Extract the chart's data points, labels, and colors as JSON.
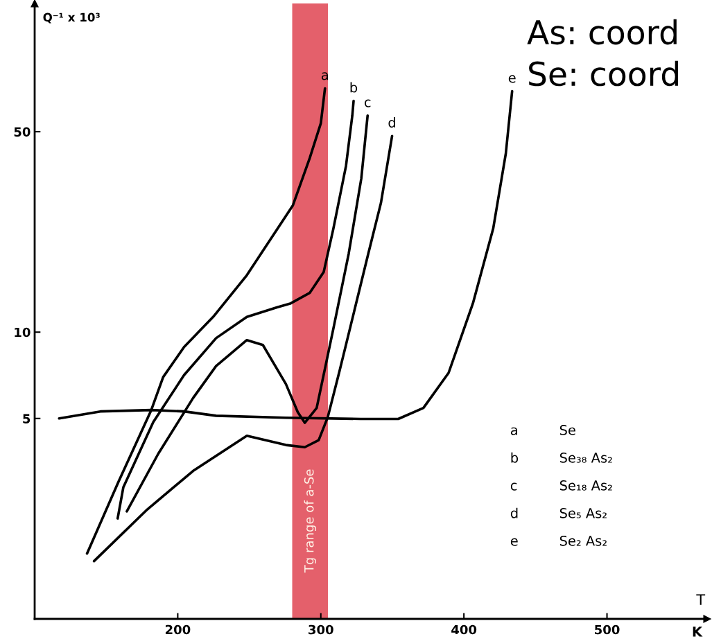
{
  "chart_data": {
    "type": "line",
    "xlabel": "T",
    "ylabel": "Q⁻¹ x 10³",
    "log": "y",
    "xlim": [
      100,
      570
    ],
    "ylim": [
      1,
      140
    ],
    "xticks": [
      200,
      300,
      400,
      500
    ],
    "yticks": [
      5,
      10,
      50
    ],
    "bands": [
      {
        "axis": "x",
        "from": 280,
        "to": 305,
        "label": "Tg range of a-Se",
        "color": "#e4606b"
      }
    ],
    "series": [
      {
        "name": "a",
        "color": "#000000",
        "x": [
          136.6,
          158.5,
          181.5,
          189.8,
          204.4,
          225.4,
          248.3,
          280.5,
          292.2,
          300,
          302.9
        ],
        "values": [
          1.69,
          3.0,
          5.35,
          6.97,
          8.87,
          11.4,
          15.8,
          27.7,
          40.4,
          53.5,
          70.8
        ]
      },
      {
        "name": "b",
        "color": "#000000",
        "x": [
          158.0,
          162.0,
          182.9,
          204.4,
          226.8,
          248.3,
          269.3,
          279.0,
          292.2,
          302.0,
          308.8,
          317.6,
          322.0,
          322.9
        ],
        "values": [
          2.24,
          2.88,
          4.86,
          7.08,
          9.53,
          11.3,
          12.2,
          12.6,
          13.7,
          16.2,
          23.0,
          38.0,
          56.9,
          64.0
        ]
      },
      {
        "name": "c",
        "color": "#000000",
        "x": [
          164.4,
          186.3,
          210.7,
          226.8,
          248.3,
          259.5,
          275.6,
          283.9,
          288.8,
          297.1,
          308.8,
          319.5,
          328.3,
          332.7
        ],
        "values": [
          2.37,
          3.76,
          5.89,
          7.62,
          9.38,
          9.02,
          6.59,
          5.26,
          4.83,
          5.44,
          10.3,
          18.8,
          34.4,
          56.9
        ]
      },
      {
        "name": "d",
        "color": "#000000",
        "x": [
          141.5,
          178.0,
          210.7,
          248.3,
          275.6,
          288.8,
          298.5,
          304.9,
          313.2,
          316.1,
          333.2,
          342.0,
          349.8
        ],
        "values": [
          1.59,
          2.39,
          3.28,
          4.35,
          4.04,
          3.97,
          4.2,
          5.06,
          7.36,
          8.43,
          18.8,
          28.2,
          48.3
        ]
      },
      {
        "name": "e",
        "color": "#000000",
        "x": [
          117.1,
          145.9,
          181.5,
          204.4,
          226.8,
          275.6,
          327.8,
          354.1,
          371.7,
          389.3,
          406.3,
          420.5,
          429.3,
          433.7
        ],
        "values": [
          5.0,
          5.29,
          5.35,
          5.29,
          5.11,
          5.03,
          4.98,
          4.98,
          5.44,
          7.21,
          12.6,
          23.0,
          42.0,
          69.2
        ]
      }
    ],
    "annotations": [
      "As: coord",
      "Se: coord",
      "K",
      "Se",
      "Se₃₈ As₂",
      "Se₁₈ As₂",
      "Se₅ As₂",
      "Se₂ As₂"
    ]
  }
}
